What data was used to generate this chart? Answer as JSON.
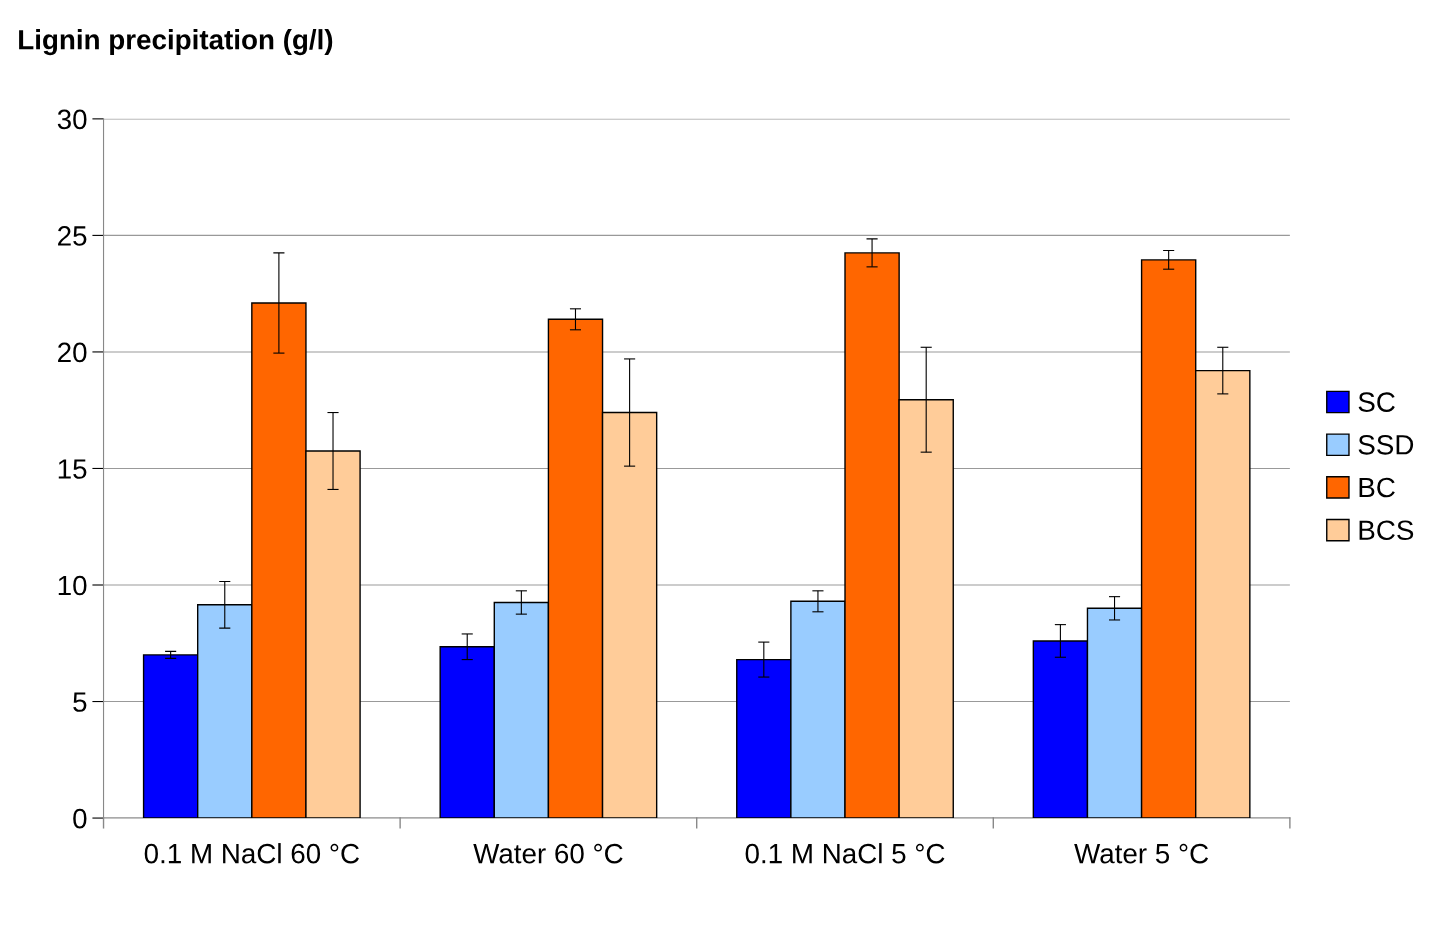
{
  "chart_data": {
    "type": "bar",
    "title": "Lignin precipitation (g/l)",
    "categories": [
      "0.1 M NaCl 60 °C",
      "Water 60 °C",
      "0.1 M NaCl 5 °C",
      "Water 5 °C"
    ],
    "series": [
      {
        "name": "SC",
        "color": "#0000ff",
        "values": [
          7.0,
          7.35,
          6.8,
          7.6
        ],
        "errors": [
          0.15,
          0.55,
          0.75,
          0.7
        ]
      },
      {
        "name": "SSD",
        "color": "#99ccff",
        "values": [
          9.15,
          9.25,
          9.3,
          9.0
        ],
        "errors": [
          1.0,
          0.5,
          0.45,
          0.5
        ]
      },
      {
        "name": "BC",
        "color": "#ff6600",
        "values": [
          22.1,
          21.4,
          24.25,
          23.95
        ],
        "errors": [
          2.15,
          0.45,
          0.6,
          0.4
        ]
      },
      {
        "name": "BCS",
        "color": "#ffcc99",
        "values": [
          15.75,
          17.4,
          17.95,
          19.2
        ],
        "errors": [
          1.65,
          2.3,
          2.25,
          1.0
        ]
      }
    ],
    "ylim": [
      0,
      30
    ],
    "yticks": [
      0,
      5,
      10,
      15,
      20,
      25,
      30
    ],
    "grid": "y",
    "legend": "right"
  }
}
